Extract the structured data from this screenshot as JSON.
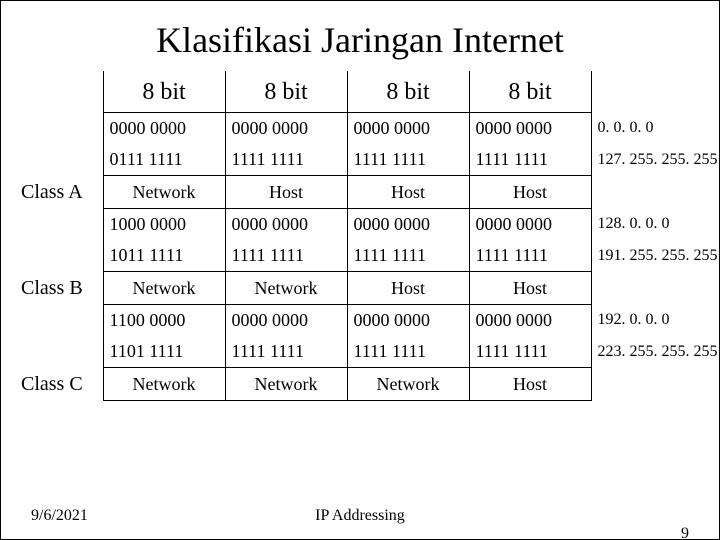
{
  "title": "Klasifikasi Jaringan Internet",
  "headers": [
    "8 bit",
    "8 bit",
    "8 bit",
    "8 bit"
  ],
  "classes": [
    {
      "label": "Class A",
      "rows": [
        {
          "octets": [
            "0000 0000",
            "0000 0000",
            "0000 0000",
            "0000 0000"
          ],
          "ip": "0. 0. 0. 0"
        },
        {
          "octets": [
            "0111 1111",
            "1111 1111",
            "1111 1111",
            "1111 1111"
          ],
          "ip": "127. 255. 255. 255"
        }
      ],
      "parts": [
        "Network",
        "Host",
        "Host",
        "Host"
      ]
    },
    {
      "label": "Class B",
      "rows": [
        {
          "octets": [
            "1000 0000",
            "0000 0000",
            "0000 0000",
            "0000 0000"
          ],
          "ip": "128. 0. 0. 0"
        },
        {
          "octets": [
            "1011 1111",
            "1111 1111",
            "1111 1111",
            "1111 1111"
          ],
          "ip": "191. 255. 255. 255"
        }
      ],
      "parts": [
        "Network",
        "Network",
        "Host",
        "Host"
      ]
    },
    {
      "label": "Class C",
      "rows": [
        {
          "octets": [
            "1100 0000",
            "0000 0000",
            "0000 0000",
            "0000 0000"
          ],
          "ip": "192. 0. 0. 0"
        },
        {
          "octets": [
            "1101 1111",
            "1111 1111",
            "1111 1111",
            "1111 1111"
          ],
          "ip": "223. 255. 255. 255"
        }
      ],
      "parts": [
        "Network",
        "Network",
        "Network",
        "Host"
      ]
    }
  ],
  "footer": {
    "date": "9/6/2021",
    "center": "IP Addressing",
    "page": "9"
  },
  "style": {
    "background_color": "#ffffff",
    "text_color": "#000000",
    "border_color": "#000000",
    "font_family": "Times New Roman",
    "title_fontsize": 36,
    "header_fontsize": 24,
    "cell_fontsize": 18,
    "ip_fontsize": 16,
    "footer_fontsize": 16
  }
}
